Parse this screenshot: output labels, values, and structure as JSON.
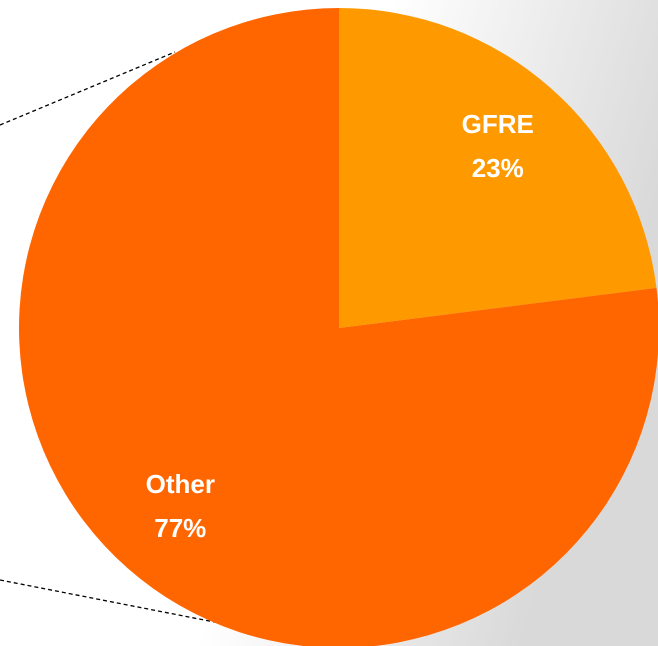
{
  "chart_data": {
    "type": "pie",
    "categories": [
      "GFRE",
      "Other"
    ],
    "values": [
      23,
      77
    ],
    "value_labels": [
      "23%",
      "77%"
    ],
    "colors": [
      "#ff9900",
      "#ff6600"
    ]
  }
}
